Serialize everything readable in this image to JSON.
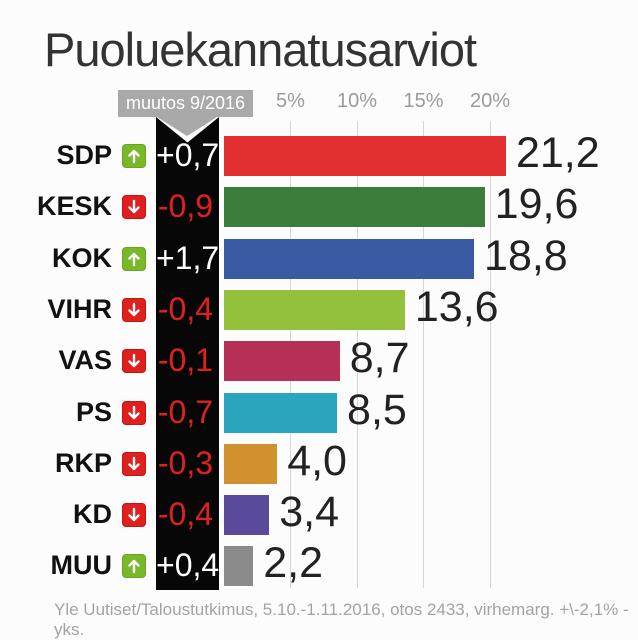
{
  "title": "Puoluekannatusarviot",
  "change_header": "muutos 9/2016",
  "footer": "Yle Uutiset/Taloustutkimus, 5.10.-1.11.2016, otos 2433, virhemarg. +\\-2,1% -yks.",
  "colors": {
    "background": "#fcfcfc",
    "black_column": "#070707",
    "header_box": "#a9a9a9",
    "gridline": "#d6d6d6",
    "axis_text": "#9b9b9b",
    "positive_change_text": "#ffffff",
    "negative_change_text": "#e02020",
    "up_icon": "#79b829",
    "up_icon_border": "#6aa51e",
    "down_icon": "#e01f1f",
    "down_icon_border": "#c41414"
  },
  "chart_data": {
    "type": "bar",
    "orientation": "horizontal",
    "title": "Puoluekannatusarviot",
    "x_axis": {
      "tick_labels": [
        "5%",
        "10%",
        "15%",
        "20%"
      ],
      "tick_values": [
        5,
        10,
        15,
        20
      ],
      "unit": "%",
      "max": 22,
      "grid": true
    },
    "rows": [
      {
        "party": "SDP",
        "change": "+0,7",
        "direction": "up",
        "value": 21.2,
        "value_label": "21,2",
        "color": "#e12e2e"
      },
      {
        "party": "KESK",
        "change": "-0,9",
        "direction": "down",
        "value": 19.6,
        "value_label": "19,6",
        "color": "#3b7d3b"
      },
      {
        "party": "KOK",
        "change": "+1,7",
        "direction": "up",
        "value": 18.8,
        "value_label": "18,8",
        "color": "#3a5aa3"
      },
      {
        "party": "VIHR",
        "change": "-0,4",
        "direction": "down",
        "value": 13.6,
        "value_label": "13,6",
        "color": "#93c13c"
      },
      {
        "party": "VAS",
        "change": "-0,1",
        "direction": "down",
        "value": 8.7,
        "value_label": "8,7",
        "color": "#b52f56"
      },
      {
        "party": "PS",
        "change": "-0,7",
        "direction": "down",
        "value": 8.5,
        "value_label": "8,5",
        "color": "#2ba4be"
      },
      {
        "party": "RKP",
        "change": "-0,3",
        "direction": "down",
        "value": 4.0,
        "value_label": "4,0",
        "color": "#d1912f"
      },
      {
        "party": "KD",
        "change": "-0,4",
        "direction": "down",
        "value": 3.4,
        "value_label": "3,4",
        "color": "#5b4a9c"
      },
      {
        "party": "MUU",
        "change": "+0,4",
        "direction": "up",
        "value": 2.2,
        "value_label": "2,2",
        "color": "#8b8b8b"
      }
    ]
  }
}
